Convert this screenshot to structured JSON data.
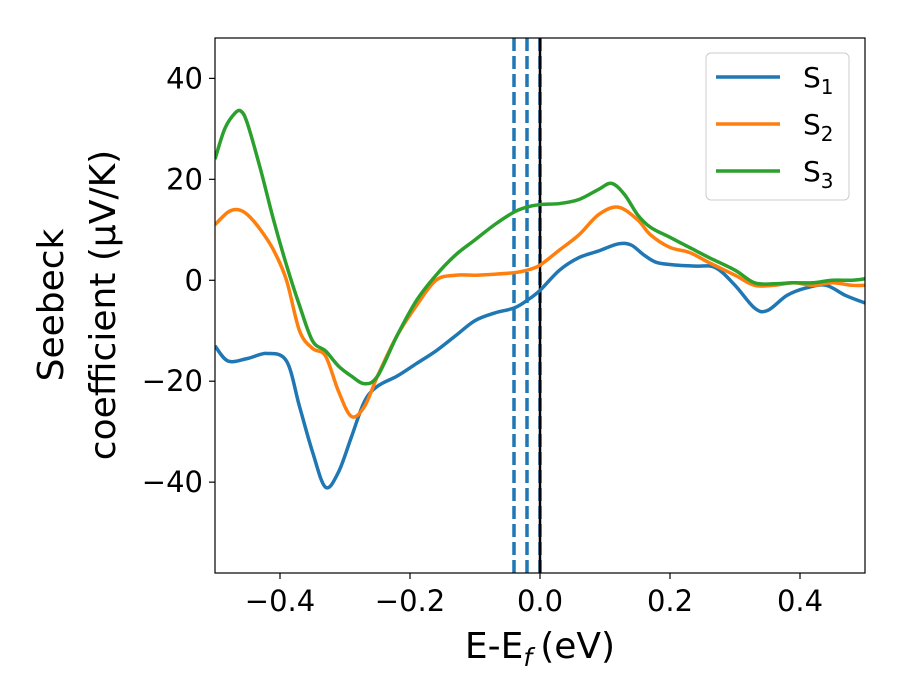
{
  "chart_data": {
    "type": "line",
    "xlabel": "E-E",
    "xlabel_sub": "f",
    "xlabel_unit": "(eV)",
    "ylabel_line1": "Seebeck",
    "ylabel_line2": "coefficient  (μV/K)",
    "xlim": [
      -0.5,
      0.5
    ],
    "ylim": [
      -58,
      48
    ],
    "x_ticks": [
      -0.4,
      -0.2,
      0.0,
      0.2,
      0.4
    ],
    "x_tick_labels": [
      "−0.4",
      "−0.2",
      "0.0",
      "0.2",
      "0.4"
    ],
    "y_ticks": [
      -40,
      -20,
      0,
      20,
      40
    ],
    "y_tick_labels": [
      "−40",
      "−20",
      "0",
      "20",
      "40"
    ],
    "grid": false,
    "legend_position": "top-right",
    "vlines": [
      {
        "x": -0.04,
        "style": "dashed",
        "color": "#1f77b4"
      },
      {
        "x": -0.02,
        "style": "dashed",
        "color": "#1f77b4"
      },
      {
        "x": 0.0,
        "style": "dashed",
        "color": "#1f77b4"
      },
      {
        "x": 0.0,
        "style": "solid",
        "color": "#000000"
      }
    ],
    "series": [
      {
        "name": "S",
        "subscript": "1",
        "color": "#1f77b4",
        "points": [
          [
            -0.5,
            -13
          ],
          [
            -0.48,
            -16
          ],
          [
            -0.45,
            -15.5
          ],
          [
            -0.42,
            -14.5
          ],
          [
            -0.39,
            -16
          ],
          [
            -0.37,
            -25
          ],
          [
            -0.35,
            -34
          ],
          [
            -0.33,
            -41
          ],
          [
            -0.31,
            -38
          ],
          [
            -0.29,
            -31
          ],
          [
            -0.27,
            -24
          ],
          [
            -0.25,
            -21
          ],
          [
            -0.22,
            -19
          ],
          [
            -0.19,
            -16.5
          ],
          [
            -0.16,
            -14
          ],
          [
            -0.13,
            -11
          ],
          [
            -0.1,
            -8
          ],
          [
            -0.07,
            -6.5
          ],
          [
            -0.04,
            -5.5
          ],
          [
            -0.02,
            -4
          ],
          [
            0.0,
            -2
          ],
          [
            0.03,
            2
          ],
          [
            0.06,
            4.5
          ],
          [
            0.09,
            5.8
          ],
          [
            0.12,
            7.2
          ],
          [
            0.14,
            7
          ],
          [
            0.16,
            5
          ],
          [
            0.18,
            3.5
          ],
          [
            0.21,
            3
          ],
          [
            0.24,
            2.8
          ],
          [
            0.27,
            2.5
          ],
          [
            0.3,
            -1
          ],
          [
            0.33,
            -5.5
          ],
          [
            0.35,
            -6
          ],
          [
            0.38,
            -3
          ],
          [
            0.41,
            -1.5
          ],
          [
            0.44,
            -1
          ],
          [
            0.47,
            -3
          ],
          [
            0.5,
            -4.5
          ]
        ]
      },
      {
        "name": "S",
        "subscript": "2",
        "color": "#ff7f0e",
        "points": [
          [
            -0.5,
            11
          ],
          [
            -0.48,
            13.5
          ],
          [
            -0.465,
            14
          ],
          [
            -0.45,
            13
          ],
          [
            -0.43,
            10
          ],
          [
            -0.41,
            6
          ],
          [
            -0.39,
            0
          ],
          [
            -0.37,
            -10
          ],
          [
            -0.35,
            -13.5
          ],
          [
            -0.33,
            -15
          ],
          [
            -0.31,
            -22
          ],
          [
            -0.29,
            -27
          ],
          [
            -0.27,
            -25
          ],
          [
            -0.25,
            -19
          ],
          [
            -0.22,
            -11
          ],
          [
            -0.19,
            -5
          ],
          [
            -0.16,
            0
          ],
          [
            -0.13,
            1
          ],
          [
            -0.1,
            1
          ],
          [
            -0.07,
            1.2
          ],
          [
            -0.04,
            1.5
          ],
          [
            -0.02,
            2
          ],
          [
            0.0,
            3
          ],
          [
            0.03,
            6
          ],
          [
            0.06,
            9
          ],
          [
            0.09,
            13
          ],
          [
            0.12,
            14.5
          ],
          [
            0.15,
            12
          ],
          [
            0.17,
            9
          ],
          [
            0.2,
            6.5
          ],
          [
            0.23,
            5.5
          ],
          [
            0.26,
            3.5
          ],
          [
            0.3,
            1
          ],
          [
            0.33,
            -1
          ],
          [
            0.36,
            -1
          ],
          [
            0.39,
            -0.5
          ],
          [
            0.42,
            -1
          ],
          [
            0.45,
            -0.5
          ],
          [
            0.48,
            -1
          ],
          [
            0.5,
            -1
          ]
        ]
      },
      {
        "name": "S",
        "subscript": "3",
        "color": "#2ca02c",
        "points": [
          [
            -0.5,
            24
          ],
          [
            -0.485,
            30
          ],
          [
            -0.47,
            33
          ],
          [
            -0.46,
            33.5
          ],
          [
            -0.45,
            31
          ],
          [
            -0.43,
            22
          ],
          [
            -0.41,
            12
          ],
          [
            -0.39,
            3
          ],
          [
            -0.37,
            -5
          ],
          [
            -0.35,
            -12
          ],
          [
            -0.33,
            -14
          ],
          [
            -0.31,
            -17
          ],
          [
            -0.29,
            -19
          ],
          [
            -0.27,
            -20.5
          ],
          [
            -0.25,
            -19
          ],
          [
            -0.22,
            -11
          ],
          [
            -0.19,
            -4
          ],
          [
            -0.16,
            1
          ],
          [
            -0.13,
            5
          ],
          [
            -0.1,
            8
          ],
          [
            -0.07,
            11
          ],
          [
            -0.04,
            13.5
          ],
          [
            -0.02,
            14.5
          ],
          [
            0.0,
            15
          ],
          [
            0.03,
            15.2
          ],
          [
            0.06,
            16
          ],
          [
            0.09,
            18
          ],
          [
            0.11,
            19.2
          ],
          [
            0.13,
            17
          ],
          [
            0.15,
            13
          ],
          [
            0.17,
            10.5
          ],
          [
            0.2,
            8.5
          ],
          [
            0.23,
            6.5
          ],
          [
            0.26,
            4.5
          ],
          [
            0.3,
            2
          ],
          [
            0.33,
            -0.5
          ],
          [
            0.36,
            -0.7
          ],
          [
            0.39,
            -0.5
          ],
          [
            0.42,
            -0.5
          ],
          [
            0.45,
            0
          ],
          [
            0.48,
            0
          ],
          [
            0.5,
            0.3
          ]
        ]
      }
    ]
  }
}
